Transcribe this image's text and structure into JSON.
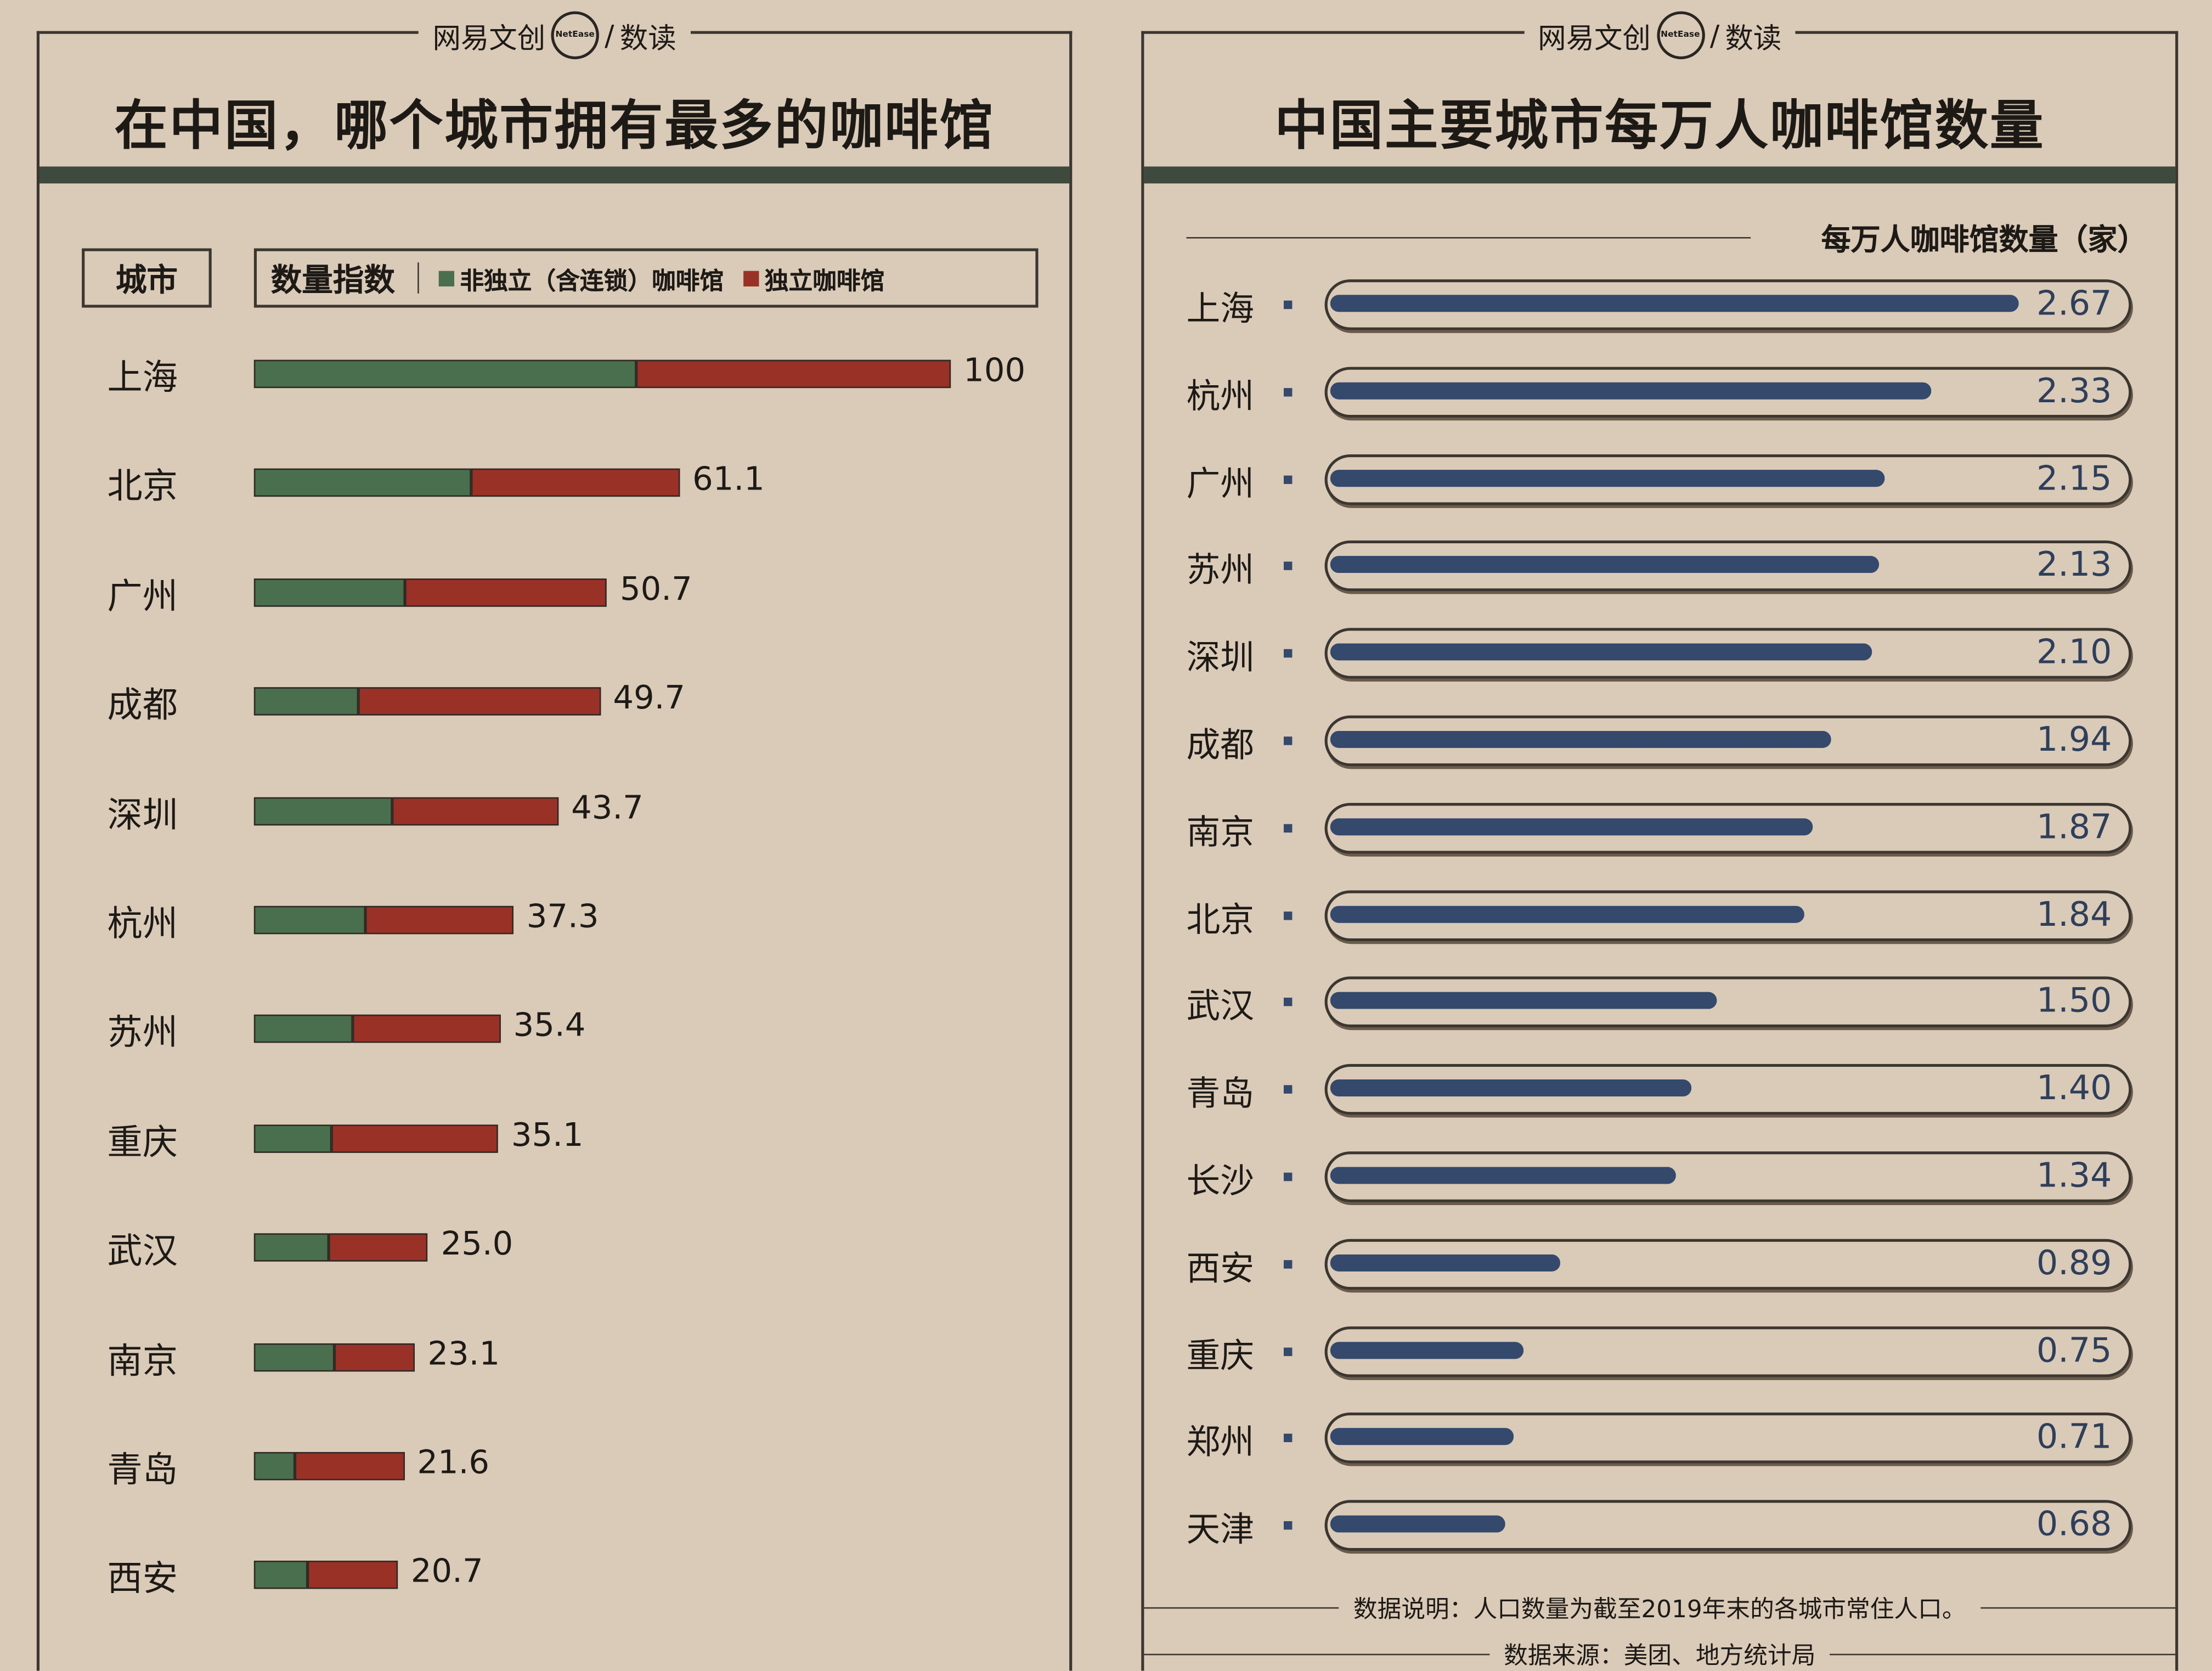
{
  "brand": {
    "name": "网易文创",
    "ring": "NetEase",
    "sub": "数读"
  },
  "left": {
    "title": "在中国，哪个城市拥有最多的咖啡馆",
    "city_header": "城市",
    "index_header": "数量指数",
    "legend": [
      {
        "label": "非独立（含连锁）咖啡馆",
        "color": "#4a6f4e"
      },
      {
        "label": "独立咖啡馆",
        "color": "#9a3127"
      }
    ]
  },
  "right": {
    "title": "中国主要城市每万人咖啡馆数量",
    "axis_label": "每万人咖啡馆数量（家）",
    "note": "数据说明：人口数量为截至2019年末的各城市常住人口。",
    "source": "数据来源：美团、地方统计局"
  },
  "chart_data": [
    {
      "type": "bar",
      "stacked": true,
      "orientation": "horizontal",
      "title": "在中国，哪个城市拥有最多的咖啡馆",
      "xlabel": "数量指数",
      "xlim": [
        0,
        100
      ],
      "categories": [
        "上海",
        "北京",
        "广州",
        "成都",
        "深圳",
        "杭州",
        "苏州",
        "重庆",
        "武汉",
        "南京",
        "青岛",
        "西安"
      ],
      "totals": [
        "100",
        "61.1",
        "50.7",
        "49.7",
        "43.7",
        "37.3",
        "35.4",
        "35.1",
        "25.0",
        "23.1",
        "21.6",
        "20.7"
      ],
      "series": [
        {
          "name": "非独立（含连锁）咖啡馆",
          "color": "#4a6f4e",
          "values": [
            54.9,
            31.2,
            21.7,
            15.0,
            19.8,
            16.0,
            14.2,
            11.1,
            10.7,
            11.5,
            5.9,
            7.7
          ]
        },
        {
          "name": "独立咖啡馆",
          "color": "#9a3127",
          "values": [
            45.1,
            29.9,
            29.0,
            34.7,
            23.9,
            21.3,
            21.2,
            24.0,
            14.3,
            11.6,
            15.7,
            13.0
          ]
        }
      ]
    },
    {
      "type": "bar",
      "orientation": "horizontal",
      "title": "中国主要城市每万人咖啡馆数量",
      "xlabel": "每万人咖啡馆数量（家）",
      "xlim": [
        0,
        3.1
      ],
      "categories": [
        "上海",
        "杭州",
        "广州",
        "苏州",
        "深圳",
        "成都",
        "南京",
        "北京",
        "武汉",
        "青岛",
        "长沙",
        "西安",
        "重庆",
        "郑州",
        "天津"
      ],
      "labels": [
        "2.67",
        "2.33",
        "2.15",
        "2.13",
        "2.10",
        "1.94",
        "1.87",
        "1.84",
        "1.50",
        "1.40",
        "1.34",
        "0.89",
        "0.75",
        "0.71",
        "0.68"
      ],
      "values": [
        2.67,
        2.33,
        2.15,
        2.13,
        2.1,
        1.94,
        1.87,
        1.84,
        1.5,
        1.4,
        1.34,
        0.89,
        0.75,
        0.71,
        0.68
      ],
      "color": "#34496b"
    }
  ]
}
